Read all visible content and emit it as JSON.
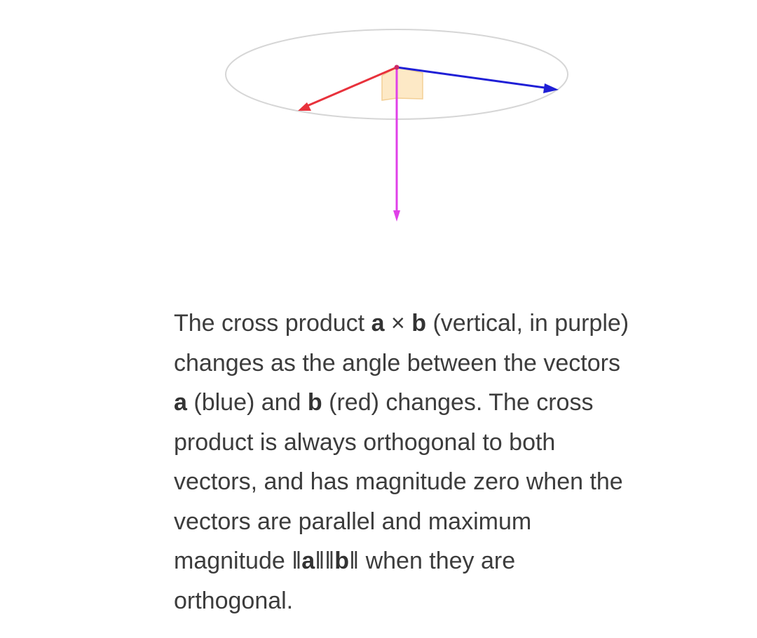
{
  "figure": {
    "vector_a_color": "#1f1fd6",
    "vector_b_color": "#e8323c",
    "cross_product_color": "#e040e8",
    "angle_marker_color": "#fde9c6",
    "circle_color": "#d6d6d6"
  },
  "caption": {
    "t1": "The cross product ",
    "a1": "a",
    "t2": " × ",
    "b1": "b",
    "t3": " (vertical, in purple) changes as the angle between the vectors ",
    "a2": "a",
    "t4": " (blue) and ",
    "b2": "b",
    "t5": " (red) changes. The cross product is always orthogonal to both vectors, and has magnitude zero when the vectors are parallel and maximum magnitude ‖",
    "a3": "a",
    "t6": "‖‖",
    "b3": "b",
    "t7": "‖ when they are orthogonal."
  }
}
